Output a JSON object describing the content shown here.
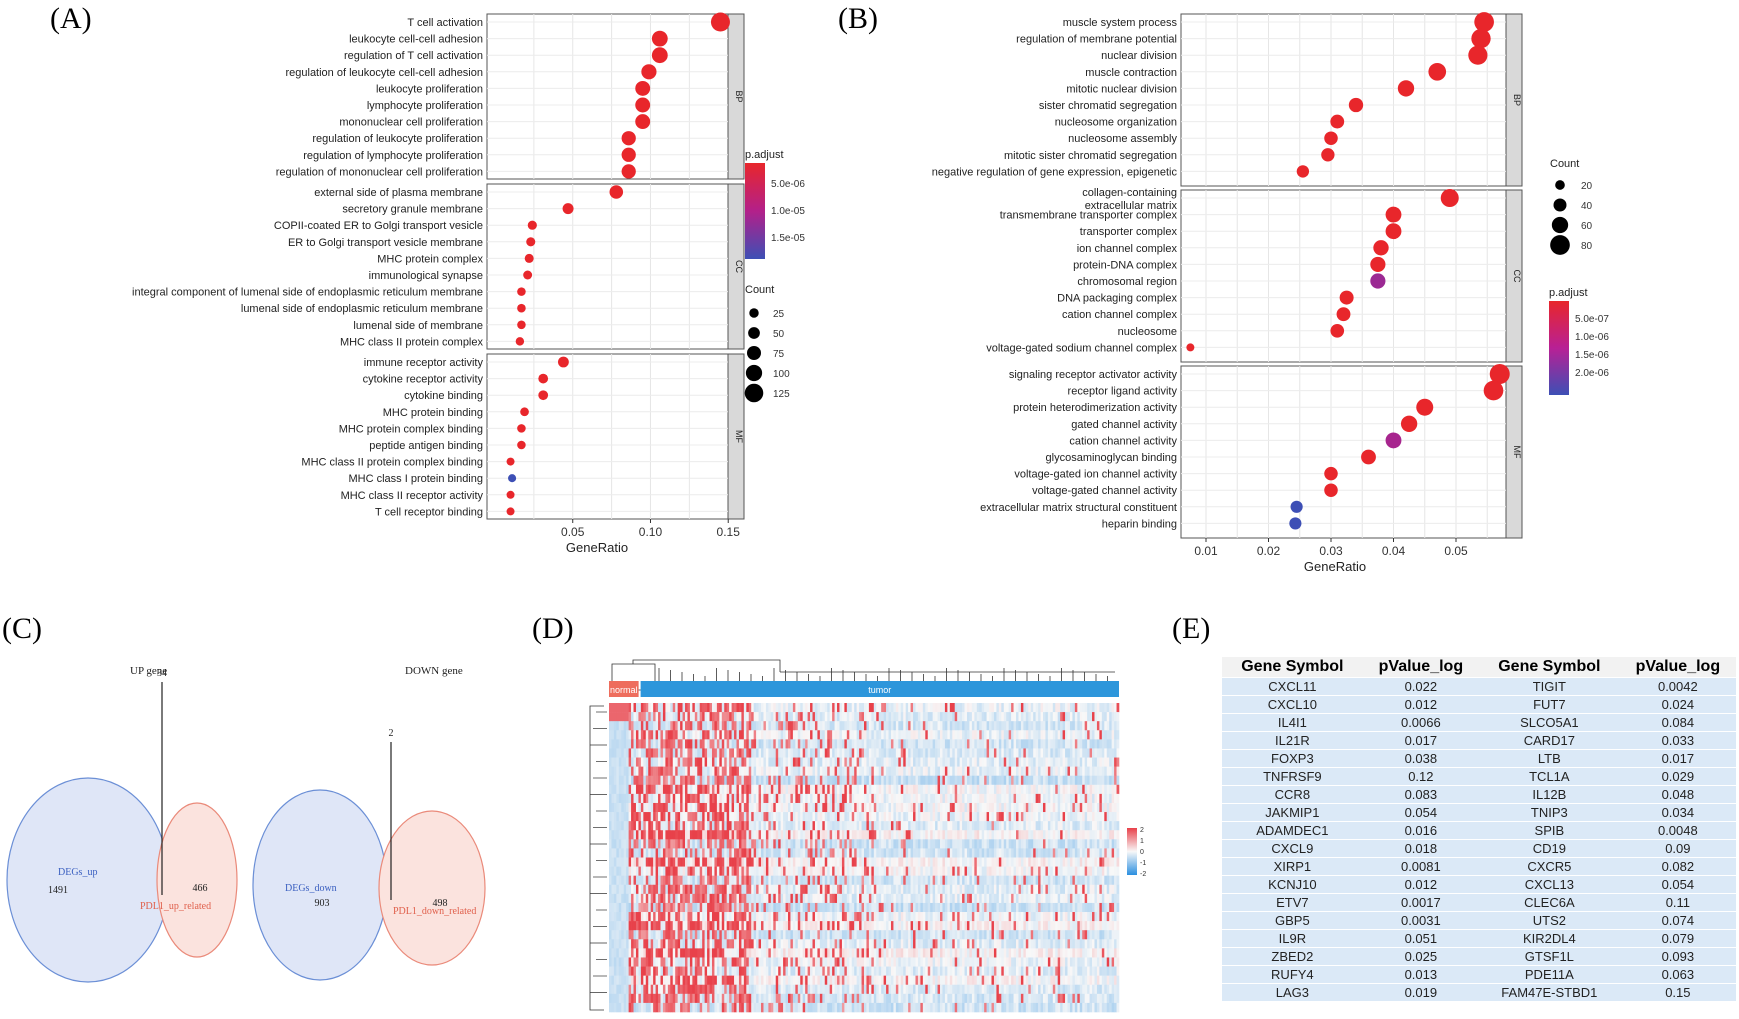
{
  "panel_labels": [
    "(A)",
    "(B)",
    "(C)",
    "(D)",
    "(E)"
  ],
  "chart_data": [
    {
      "type": "scatter",
      "panel": "(A)",
      "subtype": "GO enrichment dot plot",
      "xlabel": "GeneRatio",
      "xticks": [
        0.05,
        0.1,
        0.15
      ],
      "xlim": [
        0.0,
        0.155
      ],
      "facets": [
        {
          "name": "BP",
          "terms": [
            {
              "term": "T cell activation",
              "ratio": 0.145,
              "count": 130,
              "padj": 2e-07
            },
            {
              "term": "leukocyte cell-cell adhesion",
              "ratio": 0.106,
              "count": 95,
              "padj": 5e-07
            },
            {
              "term": "regulation of T cell activation",
              "ratio": 0.106,
              "count": 95,
              "padj": 5e-07
            },
            {
              "term": "regulation of leukocyte cell-cell adhesion",
              "ratio": 0.099,
              "count": 88,
              "padj": 5e-07
            },
            {
              "term": "leukocyte proliferation",
              "ratio": 0.095,
              "count": 85,
              "padj": 5e-07
            },
            {
              "term": "lymphocyte proliferation",
              "ratio": 0.095,
              "count": 85,
              "padj": 5e-07
            },
            {
              "term": "mononuclear cell proliferation",
              "ratio": 0.095,
              "count": 85,
              "padj": 5e-07
            },
            {
              "term": "regulation of leukocyte proliferation",
              "ratio": 0.086,
              "count": 78,
              "padj": 5e-07
            },
            {
              "term": "regulation of lymphocyte proliferation",
              "ratio": 0.086,
              "count": 78,
              "padj": 5e-07
            },
            {
              "term": "regulation of mononuclear cell proliferation",
              "ratio": 0.086,
              "count": 78,
              "padj": 5e-07
            }
          ]
        },
        {
          "name": "CC",
          "terms": [
            {
              "term": "external side of plasma membrane",
              "ratio": 0.078,
              "count": 70,
              "padj": 5e-07
            },
            {
              "term": "secretory granule membrane",
              "ratio": 0.047,
              "count": 42,
              "padj": 5e-07
            },
            {
              "term": "COPII-coated ER to Golgi transport vesicle",
              "ratio": 0.024,
              "count": 22,
              "padj": 5e-07
            },
            {
              "term": "ER to Golgi transport vesicle membrane",
              "ratio": 0.023,
              "count": 21,
              "padj": 5e-07
            },
            {
              "term": "MHC protein complex",
              "ratio": 0.022,
              "count": 20,
              "padj": 5e-07
            },
            {
              "term": "immunological synapse",
              "ratio": 0.021,
              "count": 19,
              "padj": 5e-07
            },
            {
              "term": "integral component of lumenal side of endoplasmic reticulum membrane",
              "ratio": 0.017,
              "count": 15,
              "padj": 5e-07
            },
            {
              "term": "lumenal side of endoplasmic reticulum membrane",
              "ratio": 0.017,
              "count": 15,
              "padj": 5e-07
            },
            {
              "term": "lumenal side of membrane",
              "ratio": 0.017,
              "count": 15,
              "padj": 5e-07
            },
            {
              "term": "MHC class II protein complex",
              "ratio": 0.016,
              "count": 14,
              "padj": 5e-07
            }
          ]
        },
        {
          "name": "MF",
          "terms": [
            {
              "term": "immune receptor activity",
              "ratio": 0.044,
              "count": 40,
              "padj": 5e-07
            },
            {
              "term": "cytokine receptor activity",
              "ratio": 0.031,
              "count": 28,
              "padj": 5e-07
            },
            {
              "term": "cytokine binding",
              "ratio": 0.031,
              "count": 28,
              "padj": 5e-07
            },
            {
              "term": "MHC protein binding",
              "ratio": 0.019,
              "count": 17,
              "padj": 5e-07
            },
            {
              "term": "MHC protein complex binding",
              "ratio": 0.017,
              "count": 15,
              "padj": 5e-07
            },
            {
              "term": "peptide antigen binding",
              "ratio": 0.017,
              "count": 15,
              "padj": 5e-07
            },
            {
              "term": "MHC class II protein complex binding",
              "ratio": 0.01,
              "count": 9,
              "padj": 5e-07
            },
            {
              "term": "MHC class I protein binding",
              "ratio": 0.011,
              "count": 10,
              "padj": 1.8e-05
            },
            {
              "term": "MHC class II receptor activity",
              "ratio": 0.01,
              "count": 9,
              "padj": 5e-07
            },
            {
              "term": "T cell receptor binding",
              "ratio": 0.01,
              "count": 9,
              "padj": 5e-07
            }
          ]
        }
      ],
      "legend": {
        "color_title": "p.adjust",
        "color_ticks": [
          "5.0e-06",
          "1.0e-05",
          "1.5e-05"
        ],
        "size_title": "Count",
        "size_ticks": [
          "25",
          "50",
          "75",
          "100",
          "125"
        ]
      }
    },
    {
      "type": "scatter",
      "panel": "(B)",
      "subtype": "GO enrichment dot plot",
      "xlabel": "GeneRatio",
      "xticks": [
        0.01,
        0.02,
        0.03,
        0.04,
        0.05
      ],
      "xlim": [
        0.006,
        0.058
      ],
      "facets": [
        {
          "name": "BP",
          "terms": [
            {
              "term": "muscle system process",
              "ratio": 0.0545,
              "count": 80,
              "padj": 2e-07
            },
            {
              "term": "regulation of membrane potential",
              "ratio": 0.054,
              "count": 78,
              "padj": 2e-07
            },
            {
              "term": "nuclear division",
              "ratio": 0.0535,
              "count": 77,
              "padj": 2e-07
            },
            {
              "term": "muscle contraction",
              "ratio": 0.047,
              "count": 68,
              "padj": 2e-07
            },
            {
              "term": "mitotic nuclear division",
              "ratio": 0.042,
              "count": 60,
              "padj": 2e-07
            },
            {
              "term": "sister chromatid segregation",
              "ratio": 0.034,
              "count": 48,
              "padj": 2e-07
            },
            {
              "term": "nucleosome organization",
              "ratio": 0.031,
              "count": 45,
              "padj": 2e-07
            },
            {
              "term": "nucleosome assembly",
              "ratio": 0.03,
              "count": 43,
              "padj": 2e-07
            },
            {
              "term": "mitotic sister chromatid segregation",
              "ratio": 0.0295,
              "count": 42,
              "padj": 2e-07
            },
            {
              "term": "negative regulation of gene expression, epigenetic",
              "ratio": 0.0255,
              "count": 36,
              "padj": 2e-07
            }
          ]
        },
        {
          "name": "CC",
          "terms": [
            {
              "term": "collagen-containing extracellular matrix",
              "ratio": 0.049,
              "count": 70,
              "padj": 2e-07
            },
            {
              "term": "transmembrane transporter complex",
              "ratio": 0.04,
              "count": 57,
              "padj": 2e-07
            },
            {
              "term": "transporter complex",
              "ratio": 0.04,
              "count": 57,
              "padj": 2e-07
            },
            {
              "term": "ion channel complex",
              "ratio": 0.038,
              "count": 54,
              "padj": 2e-07
            },
            {
              "term": "protein-DNA complex",
              "ratio": 0.0375,
              "count": 53,
              "padj": 2e-07
            },
            {
              "term": "chromosomal region",
              "ratio": 0.0375,
              "count": 53,
              "padj": 1.4e-06
            },
            {
              "term": "DNA packaging complex",
              "ratio": 0.0325,
              "count": 46,
              "padj": 2e-07
            },
            {
              "term": "cation channel complex",
              "ratio": 0.032,
              "count": 45,
              "padj": 2e-07
            },
            {
              "term": "nucleosome",
              "ratio": 0.031,
              "count": 44,
              "padj": 2e-07
            },
            {
              "term": "voltage-gated sodium channel complex",
              "ratio": 0.0075,
              "count": 10,
              "padj": 2e-07
            }
          ]
        },
        {
          "name": "MF",
          "terms": [
            {
              "term": "signaling receptor activator activity",
              "ratio": 0.057,
              "count": 82,
              "padj": 2e-07
            },
            {
              "term": "receptor ligand activity",
              "ratio": 0.056,
              "count": 80,
              "padj": 2e-07
            },
            {
              "term": "protein heterodimerization activity",
              "ratio": 0.045,
              "count": 64,
              "padj": 2e-07
            },
            {
              "term": "gated channel activity",
              "ratio": 0.0425,
              "count": 60,
              "padj": 2e-07
            },
            {
              "term": "cation channel activity",
              "ratio": 0.04,
              "count": 57,
              "padj": 1.3e-06
            },
            {
              "term": "glycosaminoglycan binding",
              "ratio": 0.036,
              "count": 51,
              "padj": 2e-07
            },
            {
              "term": "voltage-gated ion channel activity",
              "ratio": 0.03,
              "count": 43,
              "padj": 2e-07
            },
            {
              "term": "voltage-gated channel activity",
              "ratio": 0.03,
              "count": 43,
              "padj": 2e-07
            },
            {
              "term": "extracellular matrix structural constituent",
              "ratio": 0.0245,
              "count": 35,
              "padj": 2.2e-06
            },
            {
              "term": "heparin binding",
              "ratio": 0.0243,
              "count": 35,
              "padj": 2.2e-06
            }
          ]
        }
      ],
      "legend": {
        "size_title": "Count",
        "size_ticks": [
          "20",
          "40",
          "60",
          "80"
        ],
        "color_title": "p.adjust",
        "color_ticks": [
          "5.0e-07",
          "1.0e-06",
          "1.5e-06",
          "2.0e-06"
        ]
      }
    },
    {
      "type": "venn",
      "panel": "(C)",
      "diagrams": [
        {
          "title": "UP gene",
          "left_label": "DEGs_up",
          "left_count": "1491",
          "right_label": "PDL1_up_related",
          "right_count": "466",
          "overlap": "34"
        },
        {
          "title": "DOWN gene",
          "left_label": "DEGs_down",
          "left_count": "903",
          "right_label": "PDL1_down_related",
          "right_count": "498",
          "overlap": "2"
        }
      ]
    },
    {
      "type": "heatmap",
      "panel": "(D)",
      "groups": [
        "normal",
        "tumor"
      ],
      "color_scale": [
        "2",
        "1",
        "0",
        "-1",
        "-2"
      ],
      "rows": 34,
      "columns_normal": 8,
      "columns_tumor": 200
    },
    {
      "type": "table",
      "panel": "(E)",
      "headers": [
        "Gene Symbol",
        "pValue_log",
        "Gene Symbol",
        "pValue_log"
      ],
      "rows": [
        [
          "CXCL11",
          "0.022",
          "TIGIT",
          "0.0042"
        ],
        [
          "CXCL10",
          "0.012",
          "FUT7",
          "0.024"
        ],
        [
          "IL4I1",
          "0.0066",
          "SLCO5A1",
          "0.084"
        ],
        [
          "IL21R",
          "0.017",
          "CARD17",
          "0.033"
        ],
        [
          "FOXP3",
          "0.038",
          "LTB",
          "0.017"
        ],
        [
          "TNFRSF9",
          "0.12",
          "TCL1A",
          "0.029"
        ],
        [
          "CCR8",
          "0.083",
          "IL12B",
          "0.048"
        ],
        [
          "JAKMIP1",
          "0.054",
          "TNIP3",
          "0.034"
        ],
        [
          "ADAMDEC1",
          "0.016",
          "SPIB",
          "0.0048"
        ],
        [
          "CXCL9",
          "0.018",
          "CD19",
          "0.09"
        ],
        [
          "XIRP1",
          "0.0081",
          "CXCR5",
          "0.082"
        ],
        [
          "KCNJ10",
          "0.012",
          "CXCL13",
          "0.054"
        ],
        [
          "ETV7",
          "0.0017",
          "CLEC6A",
          "0.11"
        ],
        [
          "GBP5",
          "0.0031",
          "UTS2",
          "0.074"
        ],
        [
          "IL9R",
          "0.051",
          "KIR2DL4",
          "0.079"
        ],
        [
          "ZBED2",
          "0.025",
          "GTSF1L",
          "0.093"
        ],
        [
          "RUFY4",
          "0.013",
          "PDE11A",
          "0.063"
        ],
        [
          "LAG3",
          "0.019",
          "FAM47E-STBD1",
          "0.15"
        ]
      ]
    }
  ]
}
